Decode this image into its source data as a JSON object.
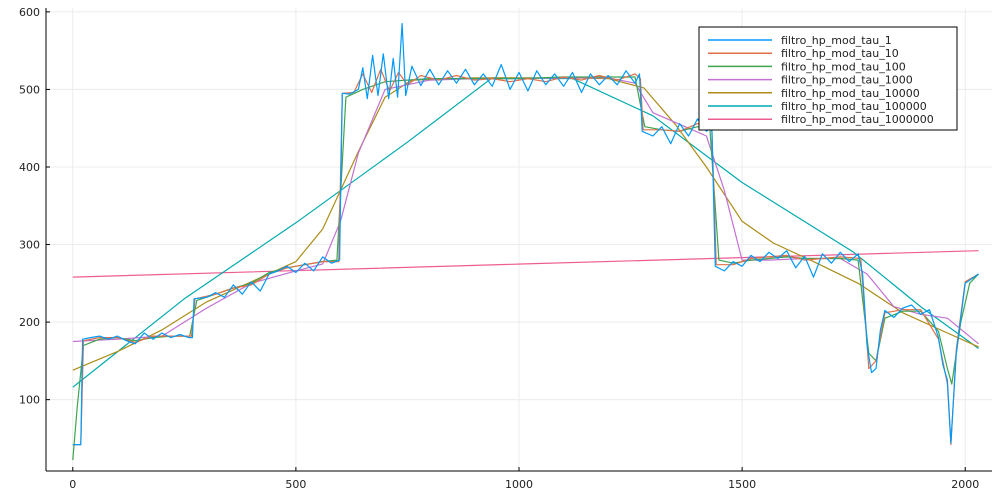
{
  "chart_data": {
    "type": "line",
    "title": "",
    "xlabel": "",
    "ylabel": "",
    "xlim": [
      -60,
      2060
    ],
    "ylim": [
      8,
      605
    ],
    "xticks": [
      0,
      500,
      1000,
      1500,
      2000
    ],
    "yticks": [
      100,
      200,
      300,
      400,
      500,
      600
    ],
    "grid": true,
    "legend_position": "top-right",
    "series": [
      {
        "name": "filtro_hp_mod_tau_1",
        "color": "#009AFA",
        "points": [
          [
            0,
            42
          ],
          [
            18,
            42
          ],
          [
            22,
            178
          ],
          [
            40,
            180
          ],
          [
            60,
            182
          ],
          [
            80,
            178
          ],
          [
            100,
            182
          ],
          [
            120,
            176
          ],
          [
            140,
            172
          ],
          [
            160,
            186
          ],
          [
            180,
            178
          ],
          [
            200,
            186
          ],
          [
            220,
            180
          ],
          [
            240,
            184
          ],
          [
            260,
            180
          ],
          [
            268,
            180
          ],
          [
            272,
            230
          ],
          [
            300,
            232
          ],
          [
            320,
            238
          ],
          [
            340,
            232
          ],
          [
            360,
            248
          ],
          [
            380,
            236
          ],
          [
            400,
            252
          ],
          [
            420,
            240
          ],
          [
            440,
            262
          ],
          [
            460,
            266
          ],
          [
            480,
            272
          ],
          [
            500,
            264
          ],
          [
            520,
            276
          ],
          [
            540,
            266
          ],
          [
            560,
            284
          ],
          [
            580,
            276
          ],
          [
            598,
            280
          ],
          [
            604,
            495
          ],
          [
            620,
            494
          ],
          [
            640,
            500
          ],
          [
            650,
            528
          ],
          [
            660,
            488
          ],
          [
            672,
            544
          ],
          [
            684,
            492
          ],
          [
            696,
            546
          ],
          [
            708,
            488
          ],
          [
            718,
            540
          ],
          [
            728,
            490
          ],
          [
            738,
            585
          ],
          [
            746,
            492
          ],
          [
            760,
            530
          ],
          [
            780,
            505
          ],
          [
            800,
            526
          ],
          [
            820,
            506
          ],
          [
            840,
            524
          ],
          [
            860,
            508
          ],
          [
            880,
            526
          ],
          [
            900,
            506
          ],
          [
            920,
            520
          ],
          [
            940,
            504
          ],
          [
            960,
            532
          ],
          [
            980,
            500
          ],
          [
            1000,
            522
          ],
          [
            1020,
            498
          ],
          [
            1040,
            524
          ],
          [
            1060,
            506
          ],
          [
            1080,
            520
          ],
          [
            1100,
            504
          ],
          [
            1120,
            522
          ],
          [
            1140,
            496
          ],
          [
            1160,
            520
          ],
          [
            1180,
            506
          ],
          [
            1200,
            518
          ],
          [
            1220,
            506
          ],
          [
            1240,
            524
          ],
          [
            1260,
            508
          ],
          [
            1270,
            520
          ],
          [
            1276,
            446
          ],
          [
            1300,
            440
          ],
          [
            1320,
            452
          ],
          [
            1340,
            430
          ],
          [
            1360,
            456
          ],
          [
            1380,
            440
          ],
          [
            1400,
            462
          ],
          [
            1420,
            446
          ],
          [
            1432,
            452
          ],
          [
            1440,
            272
          ],
          [
            1460,
            266
          ],
          [
            1480,
            278
          ],
          [
            1500,
            272
          ],
          [
            1520,
            286
          ],
          [
            1540,
            278
          ],
          [
            1560,
            290
          ],
          [
            1580,
            282
          ],
          [
            1600,
            292
          ],
          [
            1620,
            270
          ],
          [
            1640,
            285
          ],
          [
            1660,
            258
          ],
          [
            1680,
            288
          ],
          [
            1700,
            276
          ],
          [
            1720,
            290
          ],
          [
            1740,
            278
          ],
          [
            1760,
            288
          ],
          [
            1770,
            262
          ],
          [
            1780,
            170
          ],
          [
            1790,
            135
          ],
          [
            1800,
            140
          ],
          [
            1810,
            190
          ],
          [
            1820,
            215
          ],
          [
            1840,
            206
          ],
          [
            1860,
            218
          ],
          [
            1880,
            222
          ],
          [
            1900,
            210
          ],
          [
            1920,
            216
          ],
          [
            1940,
            180
          ],
          [
            1950,
            145
          ],
          [
            1960,
            125
          ],
          [
            1968,
            44
          ],
          [
            1980,
            160
          ],
          [
            2000,
            250
          ],
          [
            2030,
            262
          ]
        ]
      },
      {
        "name": "filtro_hp_mod_tau_10",
        "color": "#E26F46",
        "points": [
          [
            0,
            42
          ],
          [
            18,
            42
          ],
          [
            24,
            176
          ],
          [
            60,
            180
          ],
          [
            100,
            180
          ],
          [
            140,
            174
          ],
          [
            180,
            182
          ],
          [
            220,
            182
          ],
          [
            266,
            182
          ],
          [
            274,
            230
          ],
          [
            320,
            236
          ],
          [
            360,
            244
          ],
          [
            400,
            248
          ],
          [
            440,
            262
          ],
          [
            480,
            270
          ],
          [
            520,
            274
          ],
          [
            560,
            278
          ],
          [
            596,
            278
          ],
          [
            604,
            495
          ],
          [
            630,
            496
          ],
          [
            650,
            520
          ],
          [
            670,
            496
          ],
          [
            690,
            526
          ],
          [
            710,
            498
          ],
          [
            730,
            522
          ],
          [
            750,
            506
          ],
          [
            780,
            518
          ],
          [
            820,
            512
          ],
          [
            860,
            518
          ],
          [
            900,
            512
          ],
          [
            940,
            514
          ],
          [
            980,
            510
          ],
          [
            1020,
            514
          ],
          [
            1060,
            510
          ],
          [
            1100,
            516
          ],
          [
            1140,
            512
          ],
          [
            1180,
            518
          ],
          [
            1220,
            512
          ],
          [
            1260,
            520
          ],
          [
            1272,
            514
          ],
          [
            1278,
            448
          ],
          [
            1320,
            448
          ],
          [
            1360,
            446
          ],
          [
            1400,
            456
          ],
          [
            1432,
            452
          ],
          [
            1442,
            274
          ],
          [
            1480,
            274
          ],
          [
            1520,
            282
          ],
          [
            1560,
            284
          ],
          [
            1600,
            286
          ],
          [
            1640,
            280
          ],
          [
            1680,
            282
          ],
          [
            1720,
            284
          ],
          [
            1766,
            282
          ],
          [
            1784,
            140
          ],
          [
            1800,
            150
          ],
          [
            1820,
            212
          ],
          [
            1860,
            216
          ],
          [
            1900,
            216
          ],
          [
            1940,
            178
          ],
          [
            1960,
            120
          ],
          [
            1968,
            42
          ],
          [
            1980,
            165
          ],
          [
            2000,
            252
          ],
          [
            2030,
            262
          ]
        ]
      },
      {
        "name": "filtro_hp_mod_tau_100",
        "color": "#3EA44E",
        "points": [
          [
            0,
            22
          ],
          [
            10,
            90
          ],
          [
            24,
            170
          ],
          [
            60,
            178
          ],
          [
            100,
            180
          ],
          [
            140,
            176
          ],
          [
            180,
            180
          ],
          [
            220,
            182
          ],
          [
            262,
            182
          ],
          [
            278,
            228
          ],
          [
            320,
            236
          ],
          [
            360,
            244
          ],
          [
            400,
            250
          ],
          [
            440,
            264
          ],
          [
            480,
            270
          ],
          [
            520,
            274
          ],
          [
            560,
            278
          ],
          [
            592,
            280
          ],
          [
            612,
            490
          ],
          [
            650,
            500
          ],
          [
            700,
            510
          ],
          [
            750,
            512
          ],
          [
            800,
            514
          ],
          [
            900,
            514
          ],
          [
            1000,
            514
          ],
          [
            1100,
            516
          ],
          [
            1200,
            516
          ],
          [
            1260,
            516
          ],
          [
            1282,
            452
          ],
          [
            1320,
            448
          ],
          [
            1360,
            446
          ],
          [
            1400,
            452
          ],
          [
            1428,
            448
          ],
          [
            1448,
            280
          ],
          [
            1480,
            276
          ],
          [
            1520,
            280
          ],
          [
            1560,
            282
          ],
          [
            1600,
            284
          ],
          [
            1640,
            282
          ],
          [
            1680,
            282
          ],
          [
            1720,
            282
          ],
          [
            1760,
            280
          ],
          [
            1784,
            160
          ],
          [
            1800,
            150
          ],
          [
            1820,
            205
          ],
          [
            1860,
            214
          ],
          [
            1900,
            214
          ],
          [
            1940,
            188
          ],
          [
            1960,
            140
          ],
          [
            1970,
            120
          ],
          [
            1990,
            200
          ],
          [
            2010,
            250
          ],
          [
            2030,
            262
          ]
        ]
      },
      {
        "name": "filtro_hp_mod_tau_1000",
        "color": "#C271D2",
        "points": [
          [
            0,
            175
          ],
          [
            100,
            178
          ],
          [
            200,
            182
          ],
          [
            300,
            218
          ],
          [
            400,
            250
          ],
          [
            500,
            266
          ],
          [
            560,
            275
          ],
          [
            600,
            330
          ],
          [
            640,
            418
          ],
          [
            700,
            500
          ],
          [
            800,
            512
          ],
          [
            900,
            514
          ],
          [
            1000,
            514
          ],
          [
            1100,
            515
          ],
          [
            1200,
            515
          ],
          [
            1260,
            508
          ],
          [
            1300,
            470
          ],
          [
            1380,
            450
          ],
          [
            1420,
            440
          ],
          [
            1460,
            370
          ],
          [
            1500,
            280
          ],
          [
            1560,
            280
          ],
          [
            1640,
            282
          ],
          [
            1720,
            282
          ],
          [
            1780,
            262
          ],
          [
            1840,
            220
          ],
          [
            1900,
            210
          ],
          [
            1960,
            205
          ],
          [
            2030,
            172
          ]
        ]
      },
      {
        "name": "filtro_hp_mod_tau_10000",
        "color": "#AC8D18",
        "points": [
          [
            0,
            138
          ],
          [
            100,
            162
          ],
          [
            200,
            190
          ],
          [
            300,
            226
          ],
          [
            400,
            252
          ],
          [
            500,
            278
          ],
          [
            560,
            320
          ],
          [
            640,
            420
          ],
          [
            700,
            490
          ],
          [
            760,
            512
          ],
          [
            900,
            515
          ],
          [
            1000,
            515
          ],
          [
            1100,
            515
          ],
          [
            1200,
            514
          ],
          [
            1280,
            502
          ],
          [
            1350,
            455
          ],
          [
            1420,
            400
          ],
          [
            1500,
            330
          ],
          [
            1570,
            302
          ],
          [
            1660,
            278
          ],
          [
            1760,
            250
          ],
          [
            1860,
            212
          ],
          [
            1960,
            186
          ],
          [
            2030,
            168
          ]
        ]
      },
      {
        "name": "filtro_hp_mod_tau_100000",
        "color": "#00A9AD",
        "points": [
          [
            0,
            116
          ],
          [
            250,
            230
          ],
          [
            500,
            328
          ],
          [
            750,
            432
          ],
          [
            940,
            515
          ],
          [
            1120,
            514
          ],
          [
            1300,
            466
          ],
          [
            1500,
            380
          ],
          [
            1750,
            290
          ],
          [
            1900,
            220
          ],
          [
            2030,
            166
          ]
        ]
      },
      {
        "name": "filtro_hp_mod_tau_1000000",
        "color": "#ED5D92",
        "points": [
          [
            0,
            258
          ],
          [
            1015,
            275
          ],
          [
            2030,
            292
          ]
        ]
      }
    ]
  }
}
